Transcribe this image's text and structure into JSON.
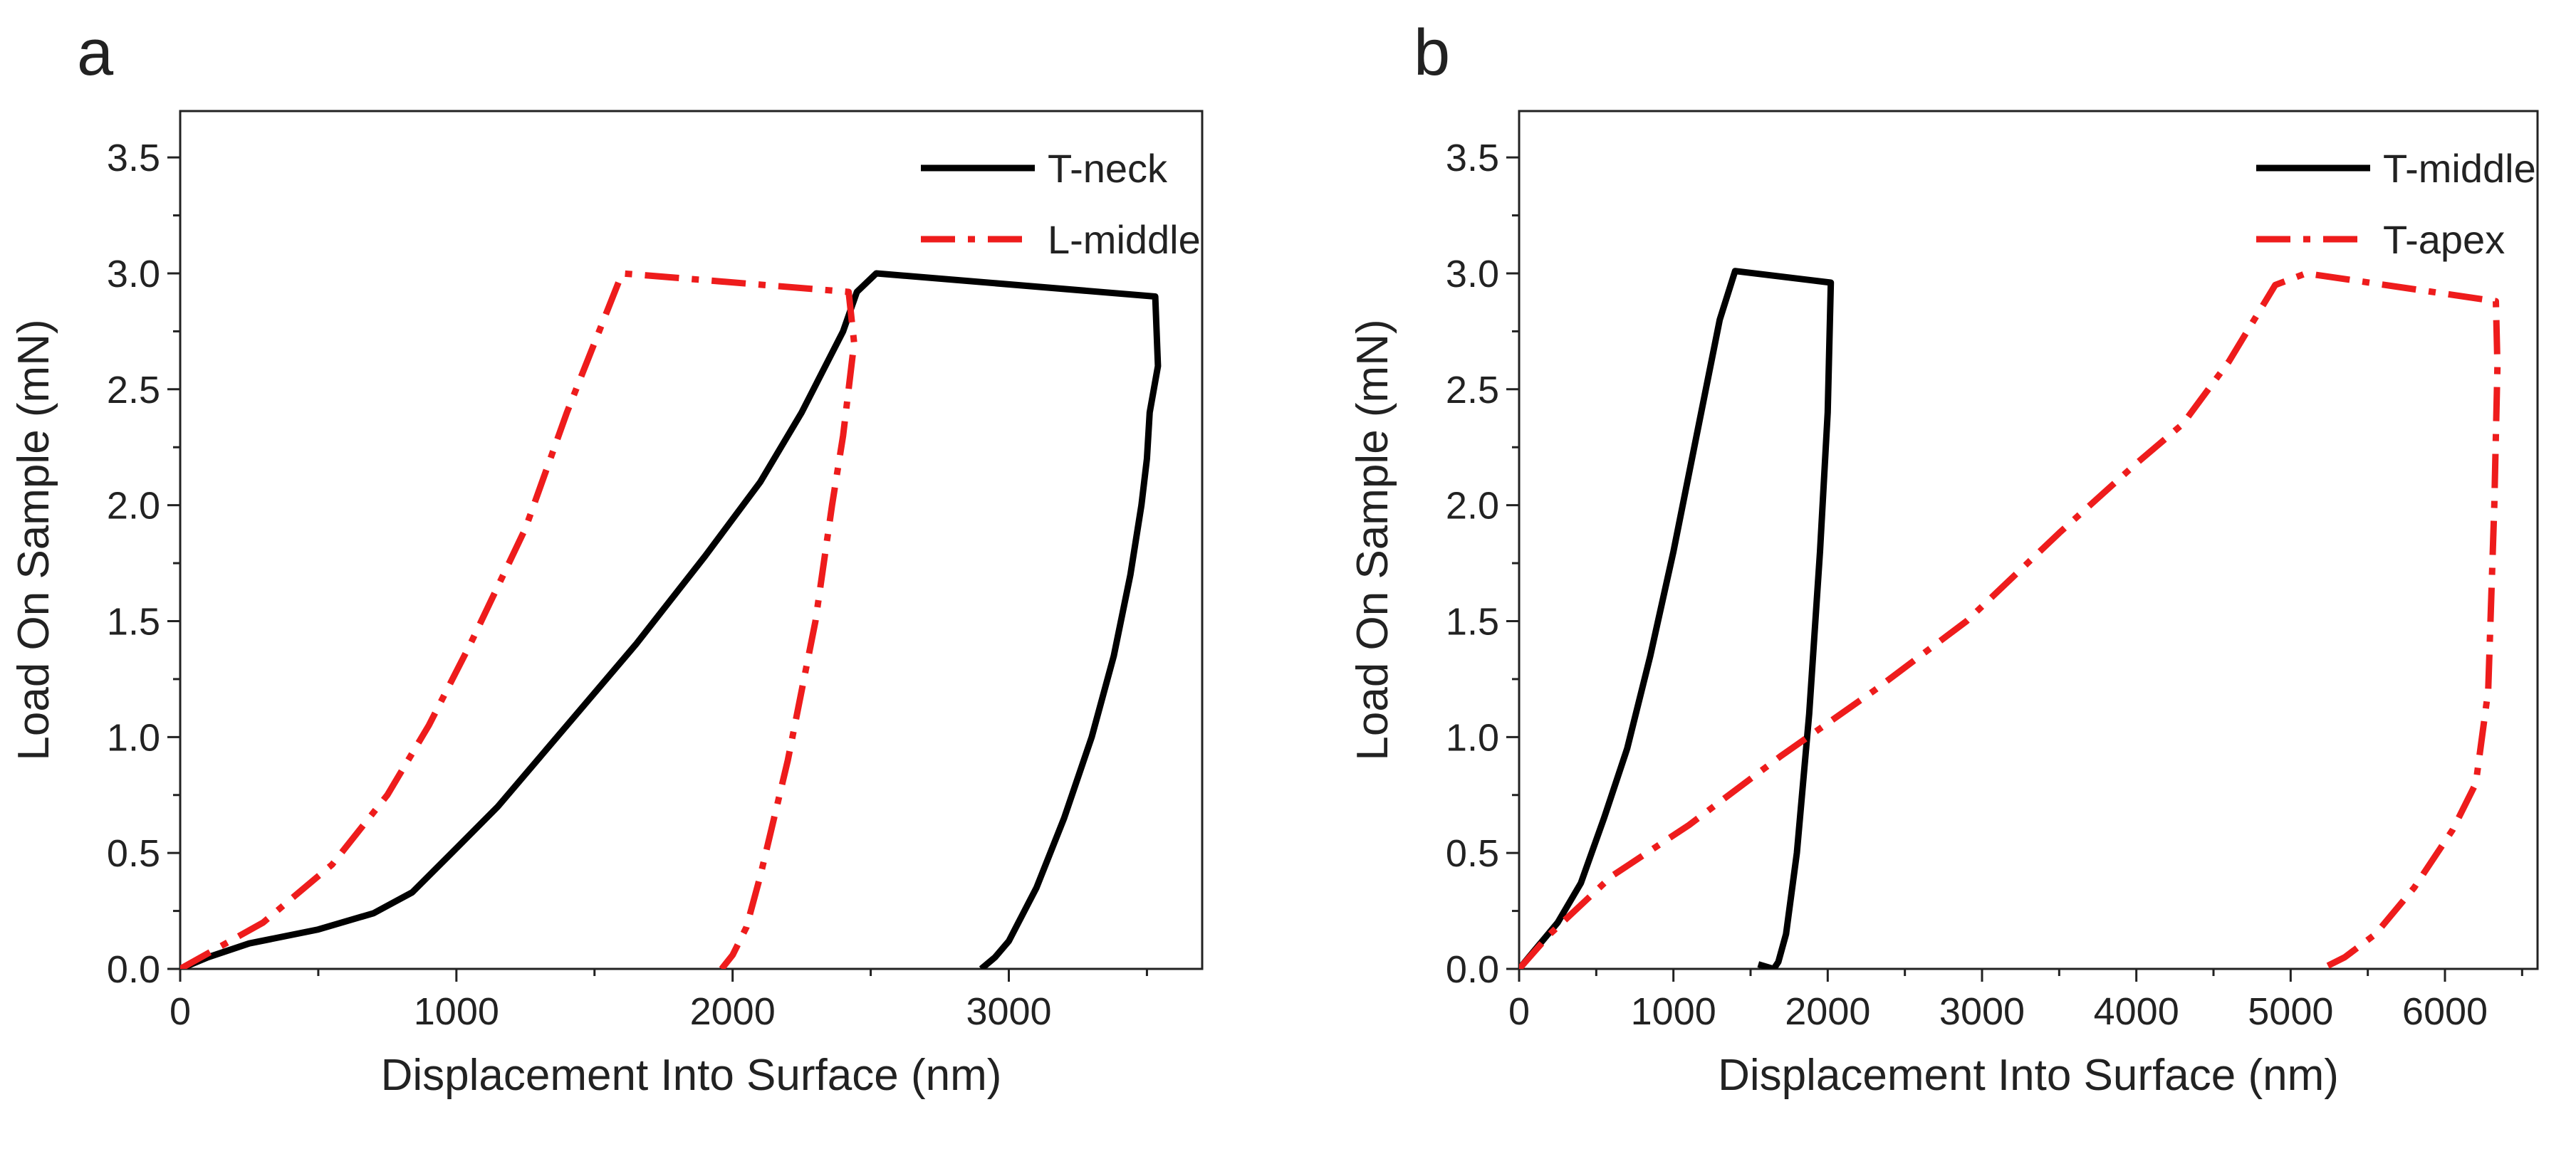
{
  "colors": {
    "black_series": "#000000",
    "red_series": "#ee1c1c"
  },
  "chart_data": [
    {
      "panel": "a",
      "type": "line",
      "xlabel": "Displacement Into Surface (nm)",
      "ylabel": "Load On Sample (mN)",
      "xlim": [
        0,
        3700
      ],
      "ylim": [
        0,
        3.7
      ],
      "xticks": [
        0,
        1000,
        2000,
        3000
      ],
      "yticks": [
        0.0,
        0.5,
        1.0,
        1.5,
        2.0,
        2.5,
        3.0,
        3.5
      ],
      "xtick_labels": [
        "0",
        "1000",
        "2000",
        "3000"
      ],
      "ytick_labels": [
        "0.0",
        "0.5",
        "1.0",
        "1.5",
        "2.0",
        "2.5",
        "3.0",
        "3.5"
      ],
      "grid": false,
      "legend": "top-right",
      "series": [
        {
          "name": "T-neck",
          "color": "#000000",
          "style": "solid",
          "x": [
            0,
            100,
            250,
            500,
            700,
            840,
            1000,
            1150,
            1400,
            1650,
            1900,
            2100,
            2250,
            2400,
            2450,
            2520,
            3530,
            3540,
            3510,
            3500,
            3480,
            3440,
            3380,
            3300,
            3200,
            3100,
            3000,
            2950,
            2900
          ],
          "y": [
            0,
            0.05,
            0.11,
            0.17,
            0.24,
            0.33,
            0.52,
            0.7,
            1.05,
            1.4,
            1.78,
            2.1,
            2.4,
            2.75,
            2.92,
            3.0,
            2.9,
            2.6,
            2.4,
            2.2,
            2.0,
            1.7,
            1.35,
            1.0,
            0.65,
            0.35,
            0.12,
            0.05,
            0
          ]
        },
        {
          "name": "L-middle",
          "color": "#ee1c1c",
          "style": "dashdot",
          "x": [
            0,
            300,
            550,
            750,
            900,
            1050,
            1250,
            1400,
            1600,
            2420,
            2440,
            2400,
            2360,
            2300,
            2200,
            2100,
            2050,
            2000,
            1960
          ],
          "y": [
            0,
            0.2,
            0.45,
            0.75,
            1.05,
            1.4,
            1.9,
            2.4,
            3.0,
            2.92,
            2.7,
            2.3,
            2.0,
            1.5,
            0.9,
            0.4,
            0.18,
            0.06,
            0
          ]
        }
      ]
    },
    {
      "panel": "b",
      "type": "line",
      "xlabel": "Displacement Into Surface (nm)",
      "ylabel": "Load On Sample (mN)",
      "xlim": [
        0,
        6600
      ],
      "ylim": [
        0,
        3.7
      ],
      "xticks": [
        0,
        1000,
        2000,
        3000,
        4000,
        5000,
        6000
      ],
      "yticks": [
        0.0,
        0.5,
        1.0,
        1.5,
        2.0,
        2.5,
        3.0,
        3.5
      ],
      "xtick_labels": [
        "0",
        "1000",
        "2000",
        "3000",
        "4000",
        "5000",
        "6000"
      ],
      "ytick_labels": [
        "0.0",
        "0.5",
        "1.0",
        "1.5",
        "2.0",
        "2.5",
        "3.0",
        "3.5"
      ],
      "grid": false,
      "legend": "top-right",
      "series": [
        {
          "name": "T-middle",
          "color": "#000000",
          "style": "solid",
          "x": [
            0,
            100,
            250,
            400,
            550,
            700,
            850,
            1000,
            1150,
            1300,
            1400,
            2020,
            2000,
            1950,
            1880,
            1800,
            1730,
            1680,
            1650,
            1550
          ],
          "y": [
            0,
            0.08,
            0.2,
            0.37,
            0.65,
            0.95,
            1.35,
            1.8,
            2.3,
            2.8,
            3.01,
            2.96,
            2.4,
            1.8,
            1.1,
            0.5,
            0.15,
            0.03,
            0,
            0.02
          ]
        },
        {
          "name": "T-apex",
          "color": "#ee1c1c",
          "style": "dashdot",
          "x": [
            0,
            200,
            600,
            1100,
            1700,
            2300,
            2900,
            3500,
            4000,
            4300,
            4600,
            4900,
            5100,
            6330,
            6340,
            6320,
            6280,
            6200,
            6050,
            5800,
            5550,
            5350,
            5200
          ],
          "y": [
            0,
            0.15,
            0.4,
            0.62,
            0.92,
            1.2,
            1.5,
            1.88,
            2.18,
            2.35,
            2.62,
            2.95,
            3.0,
            2.88,
            2.6,
            2.0,
            1.2,
            0.8,
            0.6,
            0.35,
            0.15,
            0.05,
            0
          ]
        }
      ]
    }
  ]
}
